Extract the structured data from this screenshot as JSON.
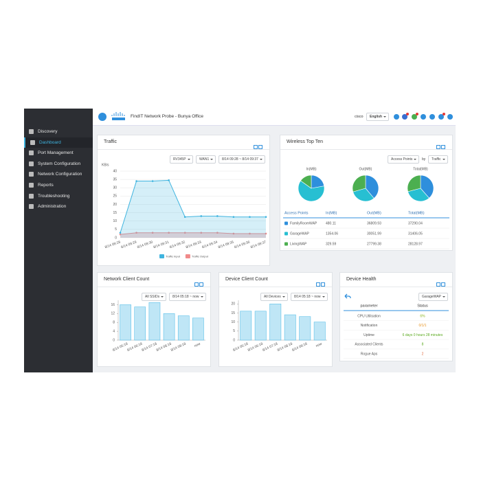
{
  "header": {
    "product": "FindIT Network Probe - Bunya Office",
    "user": "cisco",
    "language": "English"
  },
  "sidebar": {
    "items": [
      "Discovery",
      "Dashboard",
      "Port Management",
      "System Configuration",
      "Network Configuration",
      "Reports",
      "Troubleshooting",
      "Administration"
    ],
    "active": 1
  },
  "traffic": {
    "title": "Traffic",
    "filters": [
      "RV345P",
      "WAN1",
      "8/14 09:28 ~ 8/14 09:37"
    ],
    "y_label": "KB/s",
    "ylim": [
      0,
      40
    ],
    "yticks": [
      0,
      5,
      10,
      15,
      20,
      25,
      30,
      35,
      40
    ],
    "grid": true,
    "x": [
      "8/14 09:28",
      "8/14 09:29",
      "8/14 09:30",
      "8/14 09:31",
      "8/14 09:32",
      "8/14 09:33",
      "8/14 09:34",
      "8/14 09:35",
      "8/14 09:36",
      "8/14 09:37"
    ],
    "series": [
      {
        "name": "Traffic Input",
        "color": "#3fb4df",
        "values": [
          3,
          34,
          34,
          34.5,
          12.5,
          13,
          13,
          12.5,
          12.5,
          12.5
        ]
      },
      {
        "name": "Traffic Output",
        "color": "#f08a8a",
        "values": [
          2,
          3,
          3,
          3,
          3,
          3,
          3,
          2.5,
          2.5,
          2.5
        ]
      }
    ]
  },
  "wireless": {
    "title": "Wireless Top Ten",
    "filters": [
      "Access Points",
      "Traffic"
    ],
    "by": "by",
    "pie_titles": [
      "In(MB)",
      "Out(MB)",
      "Total(MB)"
    ],
    "columns": [
      "Access Points",
      "In(MB)",
      "Out(MB)",
      "Total(MB)"
    ],
    "rows": [
      {
        "name": "FamilyRoomWAP",
        "color": "#2e8fdc",
        "in": 480.11,
        "out": 36809.93,
        "total": 37290.04
      },
      {
        "name": "GarageWAP",
        "color": "#27bfd2",
        "in": 1354.06,
        "out": 30051.99,
        "total": 31406.05
      },
      {
        "name": "LivingWAP",
        "color": "#4caf50",
        "in": 329.59,
        "out": 27799.38,
        "total": 28128.97
      }
    ]
  },
  "network_clients": {
    "title": "Network Client Count",
    "filters": [
      "All SSIDs",
      "8/14 05:18 ~ now"
    ],
    "color": "#bfe6f6",
    "ylim": [
      0,
      18
    ],
    "yticks": [
      0,
      4,
      8,
      12,
      16
    ],
    "categories": [
      "8/14 05:18",
      "8/14 06:18",
      "8/14 07:18",
      "8/14 08:18",
      "8/14 09:18",
      "now"
    ],
    "values": [
      16,
      15,
      17,
      12,
      11,
      10
    ]
  },
  "device_clients": {
    "title": "Device Client Count",
    "filters": [
      "All Devices",
      "8/14 05:18 ~ now"
    ],
    "color": "#bfe6f6",
    "ylim": [
      0,
      22
    ],
    "yticks": [
      0,
      5,
      10,
      15,
      20
    ],
    "categories": [
      "8/14 05:18",
      "8/14 06:18",
      "8/14 07:18",
      "8/14 08:18",
      "8/14 09:18",
      "now"
    ],
    "values": [
      16,
      16,
      20,
      14,
      13,
      10
    ]
  },
  "device_health": {
    "title": "Device Health",
    "filter": "GarageWAP",
    "columns": [
      "parameter",
      "Status"
    ],
    "rows": [
      {
        "parameter": "CPU Utilisation",
        "status": "6%",
        "color": "#8bb51f"
      },
      {
        "parameter": "Notification",
        "status": "0/1/1",
        "color": "#e8921c"
      },
      {
        "parameter": "Uptime",
        "status": "6 days 0 hours 28 minutes",
        "color": "#5aa91e"
      },
      {
        "parameter": "Associated Clients",
        "status": "8",
        "color": "#5aa91e"
      },
      {
        "parameter": "Rogue Aps",
        "status": "2",
        "color": "#e0663a"
      }
    ]
  }
}
